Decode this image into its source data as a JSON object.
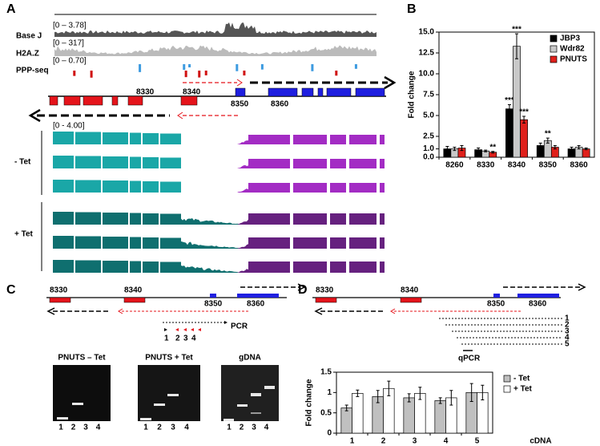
{
  "panel_labels": [
    "A",
    "B",
    "C",
    "D"
  ],
  "panel_a": {
    "tracks": [
      {
        "range": "[0 – 3.78]",
        "label": "Base J"
      },
      {
        "range": "[0 – 317]",
        "label": "H2A.Z"
      },
      {
        "range": "[0 – 0.70]",
        "label": "PPP-seq"
      }
    ],
    "genes": [
      "8330",
      "8340",
      "8350",
      "8360"
    ],
    "rnaseq_range": "[0 - 4.00]",
    "conditions": [
      "- Tet",
      "+ Tet"
    ]
  },
  "panel_c": {
    "genes": [
      "8330",
      "8340",
      "8350",
      "8360"
    ],
    "pcr_label": "PCR",
    "primer_numbers": [
      "1",
      "2",
      "3",
      "4"
    ],
    "gels": [
      {
        "title": "PNUTS – Tet",
        "lanes": [
          "1",
          "2",
          "3",
          "4"
        ]
      },
      {
        "title": "PNUTS + Tet",
        "lanes": [
          "1",
          "2",
          "3",
          "4"
        ]
      },
      {
        "title": "gDNA",
        "lanes": [
          "1",
          "2",
          "3",
          "4"
        ]
      }
    ]
  },
  "panel_d": {
    "genes": [
      "8330",
      "8340",
      "8350",
      "8360"
    ],
    "primer_numbers": [
      "1",
      "2",
      "3",
      "4",
      "5"
    ],
    "qpcr_label": "qPCR"
  },
  "chart_data": [
    {
      "type": "bar",
      "y_label": "Fold change",
      "categories": [
        "8260",
        "8330",
        "8340",
        "8350",
        "8360"
      ],
      "series": [
        {
          "name": "JBP3",
          "color": "#000000",
          "values": [
            1.0,
            0.9,
            5.8,
            1.4,
            1.0
          ],
          "errors": [
            0.3,
            0.2,
            0.5,
            0.3,
            0.2
          ],
          "significance": [
            null,
            null,
            "***",
            null,
            null
          ]
        },
        {
          "name": "Wdr82",
          "color": "#c8c8c8",
          "values": [
            1.0,
            0.75,
            13.3,
            2.0,
            1.2
          ],
          "errors": [
            0.2,
            0.1,
            1.5,
            0.3,
            0.2
          ],
          "significance": [
            null,
            null,
            "***",
            "**",
            null
          ]
        },
        {
          "name": "PNUTS",
          "color": "#e0201b",
          "values": [
            1.1,
            0.6,
            4.5,
            1.2,
            1.0
          ],
          "errors": [
            0.3,
            0.1,
            0.4,
            0.2,
            0.1
          ],
          "significance": [
            null,
            "**",
            "***",
            null,
            null
          ]
        }
      ],
      "ylim": [
        0,
        15
      ],
      "yticks": [
        {
          "value": 0,
          "label": "0.0"
        },
        {
          "value": 1,
          "label": "1.0"
        },
        {
          "value": 2.5,
          "label": "2.5"
        },
        {
          "value": 5,
          "label": "5.0"
        },
        {
          "value": 7.5,
          "label": "7.5"
        },
        {
          "value": 10,
          "label": "10.0"
        },
        {
          "value": 12.5,
          "label": "12.5"
        },
        {
          "value": 15,
          "label": "15.0"
        }
      ],
      "grid": false,
      "legend": "upper right"
    },
    {
      "type": "bar",
      "x_label": "cDNA",
      "y_label": "Fold change",
      "categories": [
        "1",
        "2",
        "3",
        "4",
        "5"
      ],
      "series": [
        {
          "name": "- Tet",
          "color": "#c0c0c0",
          "values": [
            0.62,
            0.9,
            0.87,
            0.8,
            1.0
          ],
          "errors": [
            0.07,
            0.15,
            0.1,
            0.07,
            0.22
          ]
        },
        {
          "name": "+ Tet",
          "color": "#ffffff",
          "values": [
            0.98,
            1.1,
            0.98,
            0.87,
            1.0
          ],
          "errors": [
            0.08,
            0.18,
            0.15,
            0.18,
            0.18
          ]
        }
      ],
      "ylim": [
        0,
        1.5
      ],
      "yticks": [
        0,
        0.5,
        1,
        1.5
      ],
      "grid": false,
      "legend": "outside right"
    }
  ]
}
